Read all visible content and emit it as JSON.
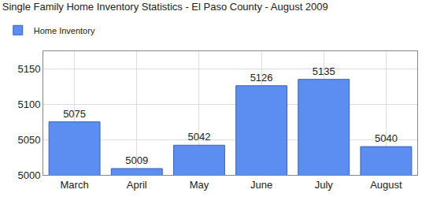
{
  "chart_data": {
    "type": "bar",
    "title": "Single Family Home Inventory Statistics - El Paso County - August 2009",
    "categories": [
      "March",
      "April",
      "May",
      "June",
      "July",
      "August"
    ],
    "series": [
      {
        "name": "Home Inventory",
        "color": "#5b8ef0",
        "values": [
          5075,
          5009,
          5042,
          5126,
          5135,
          5040
        ]
      }
    ],
    "ylim": [
      5000,
      5175
    ],
    "yticks": [
      5000,
      5050,
      5100,
      5150
    ],
    "grid": true,
    "legend": "top-left",
    "data_labels": true
  }
}
